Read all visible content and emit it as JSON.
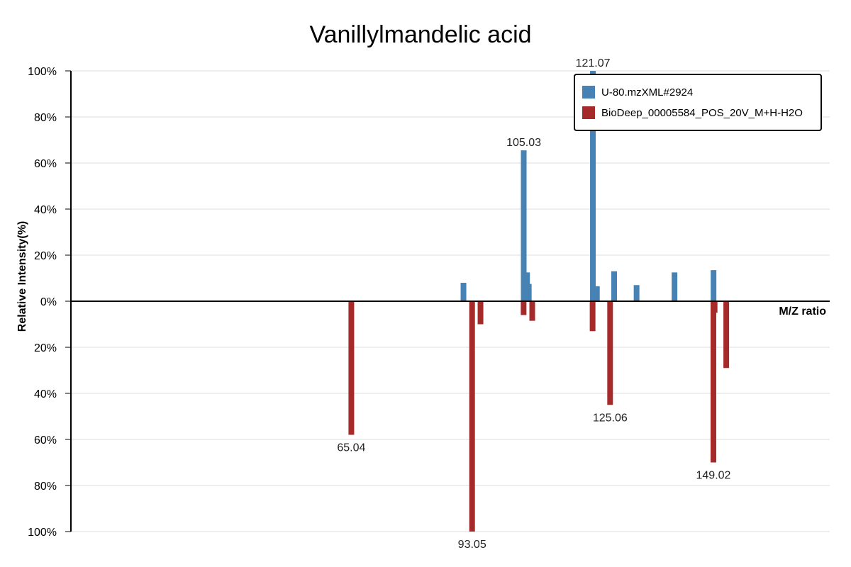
{
  "chart_data": {
    "type": "bar",
    "title": "Vanillylmandelic acid",
    "xlabel": "M/Z ratio",
    "ylabel": "Relative Intensity(%)",
    "xlim": [
      0,
      176
    ],
    "ylim": [
      -100,
      100
    ],
    "y_ticks": [
      "100%",
      "80%",
      "60%",
      "40%",
      "20%",
      "0%",
      "20%",
      "40%",
      "60%",
      "80%",
      "100%"
    ],
    "grid": true,
    "legend_position": "top-right",
    "series": [
      {
        "name": "U-80.mzXML#2924",
        "color": "#4682b4",
        "direction": "up",
        "points": [
          {
            "mz": 91.05,
            "intensity": 8
          },
          {
            "mz": 105.03,
            "intensity": 65.5,
            "label": "105.03"
          },
          {
            "mz": 105.8,
            "intensity": 12.5
          },
          {
            "mz": 106.2,
            "intensity": 7.5
          },
          {
            "mz": 121.07,
            "intensity": 100,
            "label": "121.07"
          },
          {
            "mz": 122.0,
            "intensity": 6.5
          },
          {
            "mz": 126.0,
            "intensity": 13
          },
          {
            "mz": 131.2,
            "intensity": 7
          },
          {
            "mz": 140.0,
            "intensity": 12.5
          },
          {
            "mz": 149.05,
            "intensity": 13.5
          }
        ]
      },
      {
        "name": "BioDeep_00005584_POS_20V_M+H-H2O",
        "color": "#a52a2a",
        "direction": "down",
        "points": [
          {
            "mz": 65.04,
            "intensity": 58,
            "label": "65.04"
          },
          {
            "mz": 93.05,
            "intensity": 100,
            "label": "93.05"
          },
          {
            "mz": 95.0,
            "intensity": 10
          },
          {
            "mz": 105.0,
            "intensity": 6
          },
          {
            "mz": 107.0,
            "intensity": 8.5
          },
          {
            "mz": 121.0,
            "intensity": 13
          },
          {
            "mz": 125.06,
            "intensity": 45,
            "label": "125.06"
          },
          {
            "mz": 149.02,
            "intensity": 70,
            "label": "149.02"
          },
          {
            "mz": 152.0,
            "intensity": 29
          },
          {
            "mz": 149.3,
            "intensity": 5
          }
        ]
      }
    ]
  }
}
